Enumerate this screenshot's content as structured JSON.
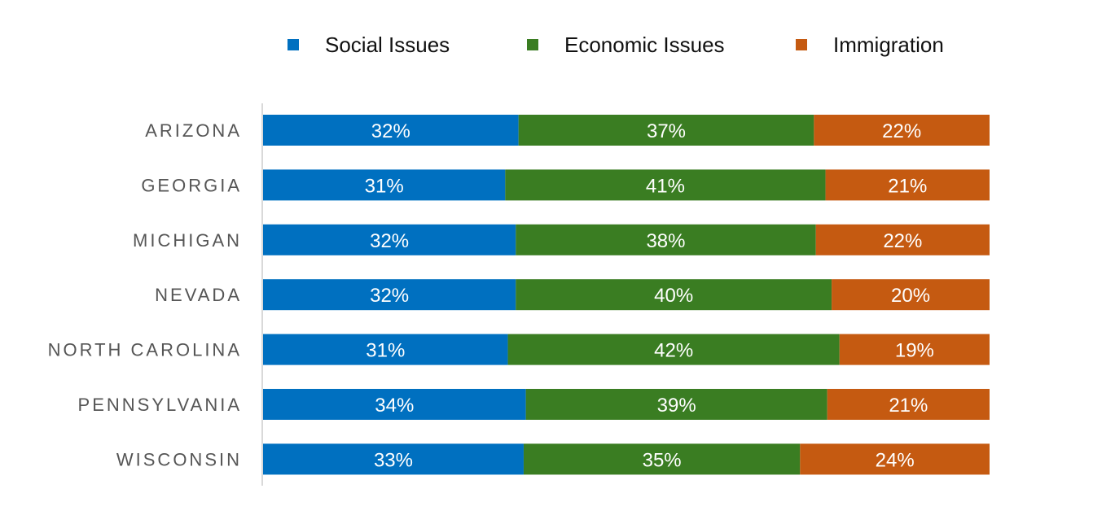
{
  "chart_data": {
    "type": "bar",
    "orientation": "horizontal",
    "stacked": true,
    "categories": [
      "ARIZONA",
      "GEORGIA",
      "MICHIGAN",
      "NEVADA",
      "NORTH CAROLINA",
      "PENNSYLVANIA",
      "WISCONSIN"
    ],
    "series": [
      {
        "name": "Social Issues",
        "color": "#0070C0",
        "values": [
          32,
          31,
          32,
          32,
          31,
          34,
          33
        ]
      },
      {
        "name": "Economic Issues",
        "color": "#3A7D22",
        "values": [
          37,
          41,
          38,
          40,
          42,
          39,
          35
        ]
      },
      {
        "name": "Immigration",
        "color": "#C55A11",
        "values": [
          22,
          21,
          22,
          20,
          19,
          21,
          24
        ]
      }
    ],
    "value_suffix": "%",
    "legend_position": "top",
    "grid": false
  }
}
